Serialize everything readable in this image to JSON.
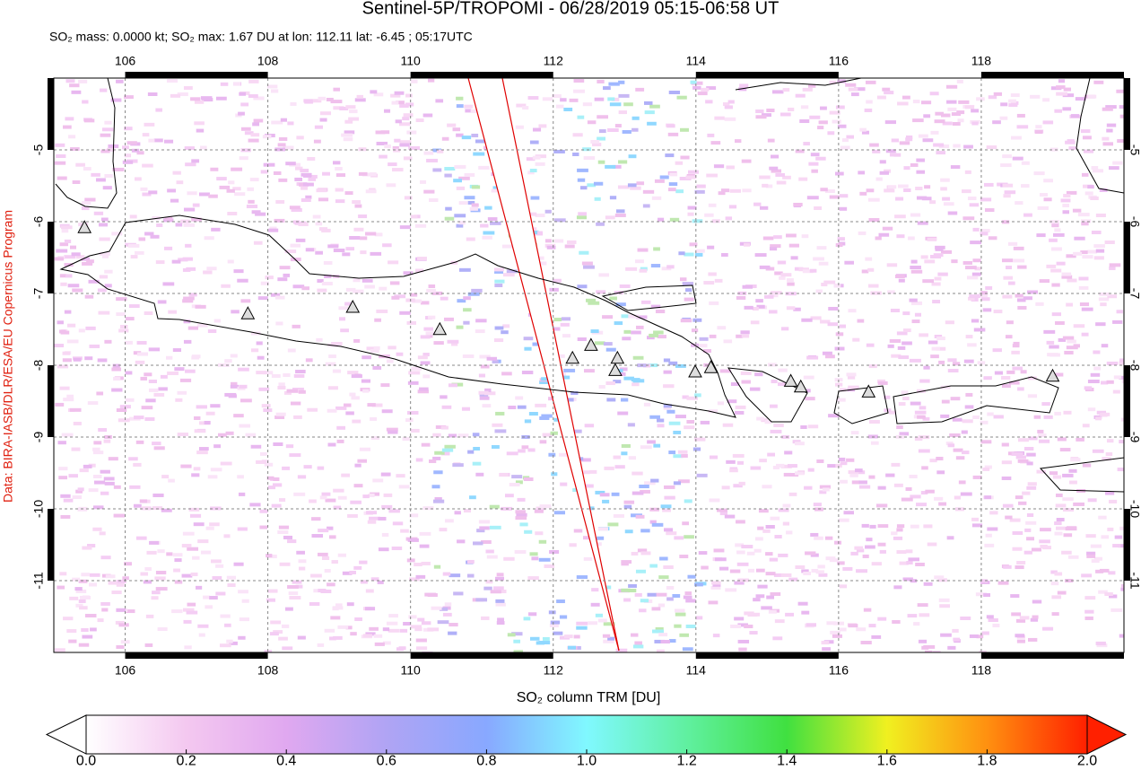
{
  "chart_data": {
    "type": "map",
    "title": "Sentinel-5P/TROPOMI - 06/28/2019 05:15-06:58 UT",
    "subtitle": "SO₂ mass: 0.0000 kt; SO₂ max: 1.67 DU at lon: 112.11 lat: -6.45 ; 05:17UTC",
    "credit": "Data: BIRA-IASB/DLR/ESA/EU Copernicus Program",
    "xlim": [
      105,
      120
    ],
    "xticks": [
      106,
      108,
      110,
      112,
      114,
      116,
      118
    ],
    "ylim": [
      -12,
      -4
    ],
    "yticks": [
      -5,
      -6,
      -7,
      -8,
      -9,
      -10,
      -11
    ],
    "grid": true,
    "volcanoes": {
      "lon": [
        105.43,
        107.72,
        109.19,
        110.41,
        112.27,
        112.53,
        112.9,
        112.87,
        113.99,
        114.21,
        115.33,
        115.47,
        116.42,
        119.0
      ],
      "lat": [
        -6.09,
        -7.29,
        -7.2,
        -7.51,
        -7.91,
        -7.73,
        -7.91,
        -8.08,
        -8.1,
        -8.04,
        -8.23,
        -8.31,
        -8.38,
        -8.16
      ]
    },
    "colorbar": {
      "label": "SO₂ column TRM [DU]",
      "lim": [
        0,
        2
      ],
      "ticks": [
        {
          "value": 0,
          "label": "0.0"
        },
        0.2,
        0.4,
        0.6,
        0.8,
        {
          "value": 1,
          "label": "1.0"
        },
        1.2,
        1.4,
        1.6,
        1.8,
        {
          "value": 2,
          "label": "2.0"
        }
      ],
      "colors": [
        "#ffffff",
        "#f4c8f0",
        "#e0a8f0",
        "#b0a4f4",
        "#88a8ff",
        "#80f8ff",
        "#60f0a0",
        "#40e040",
        "#f0f020",
        "#ff9010",
        "#ff2000"
      ]
    }
  }
}
